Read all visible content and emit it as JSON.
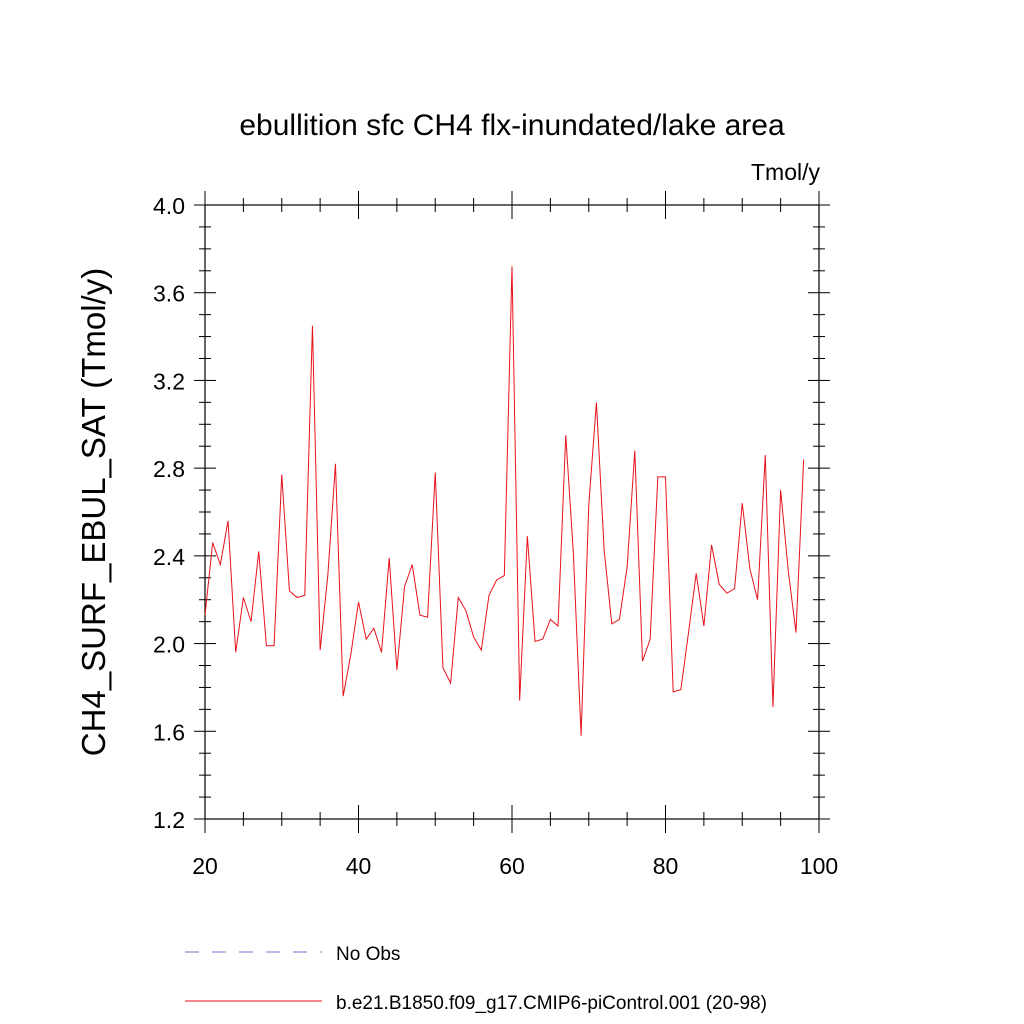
{
  "chart_data": {
    "type": "line",
    "title": "ebullition sfc CH4 flx-inundated/lake area",
    "units_label": "Tmol/y",
    "ylabel": "CH4_SURF_EBUL_SAT  (Tmol/y)",
    "xlabel": "",
    "xlim": [
      20,
      100
    ],
    "ylim": [
      1.2,
      4.0
    ],
    "x_ticks": [
      20,
      40,
      60,
      80,
      100
    ],
    "y_ticks": [
      1.2,
      1.6,
      2.0,
      2.4,
      2.8,
      3.2,
      3.6,
      4.0
    ],
    "y_tick_labels": [
      "1.2",
      "1.6",
      "2.0",
      "2.4",
      "2.8",
      "3.2",
      "3.6",
      "4.0"
    ],
    "grid": false,
    "legend_position": "bottom",
    "series": [
      {
        "name": "No Obs",
        "style": "dashed",
        "color": "#7b6fd0",
        "x": [],
        "values": []
      },
      {
        "name": "b.e21.B1850.f09_g17.CMIP6-piControl.001 (20-98)",
        "style": "solid",
        "color": "#e8121a",
        "x": [
          20,
          21,
          22,
          23,
          24,
          25,
          26,
          27,
          28,
          29,
          30,
          31,
          32,
          33,
          34,
          35,
          36,
          37,
          38,
          39,
          40,
          41,
          42,
          43,
          44,
          45,
          46,
          47,
          48,
          49,
          50,
          51,
          52,
          53,
          54,
          55,
          56,
          57,
          58,
          59,
          60,
          61,
          62,
          63,
          64,
          65,
          66,
          67,
          68,
          69,
          70,
          71,
          72,
          73,
          74,
          75,
          76,
          77,
          78,
          79,
          80,
          81,
          82,
          83,
          84,
          85,
          86,
          87,
          88,
          89,
          90,
          91,
          92,
          93,
          94,
          95,
          96,
          97,
          98
        ],
        "values": [
          2.13,
          2.46,
          2.36,
          2.56,
          1.96,
          2.21,
          2.1,
          2.42,
          1.99,
          1.99,
          2.77,
          2.24,
          2.21,
          2.22,
          3.45,
          1.97,
          2.31,
          2.82,
          1.76,
          1.95,
          2.19,
          2.02,
          2.07,
          1.96,
          2.39,
          1.88,
          2.26,
          2.36,
          2.13,
          2.12,
          2.78,
          1.89,
          1.82,
          2.21,
          2.15,
          2.03,
          1.97,
          2.22,
          2.29,
          2.31,
          3.72,
          1.74,
          2.49,
          2.01,
          2.02,
          2.11,
          2.08,
          2.95,
          2.41,
          1.58,
          2.63,
          3.1,
          2.43,
          2.09,
          2.11,
          2.35,
          2.88,
          1.92,
          2.02,
          2.76,
          2.76,
          1.78,
          1.79,
          2.05,
          2.32,
          2.08,
          2.45,
          2.27,
          2.23,
          2.25,
          2.64,
          2.34,
          2.2,
          2.86,
          1.71,
          2.7,
          2.33,
          2.05,
          2.84
        ]
      }
    ]
  }
}
